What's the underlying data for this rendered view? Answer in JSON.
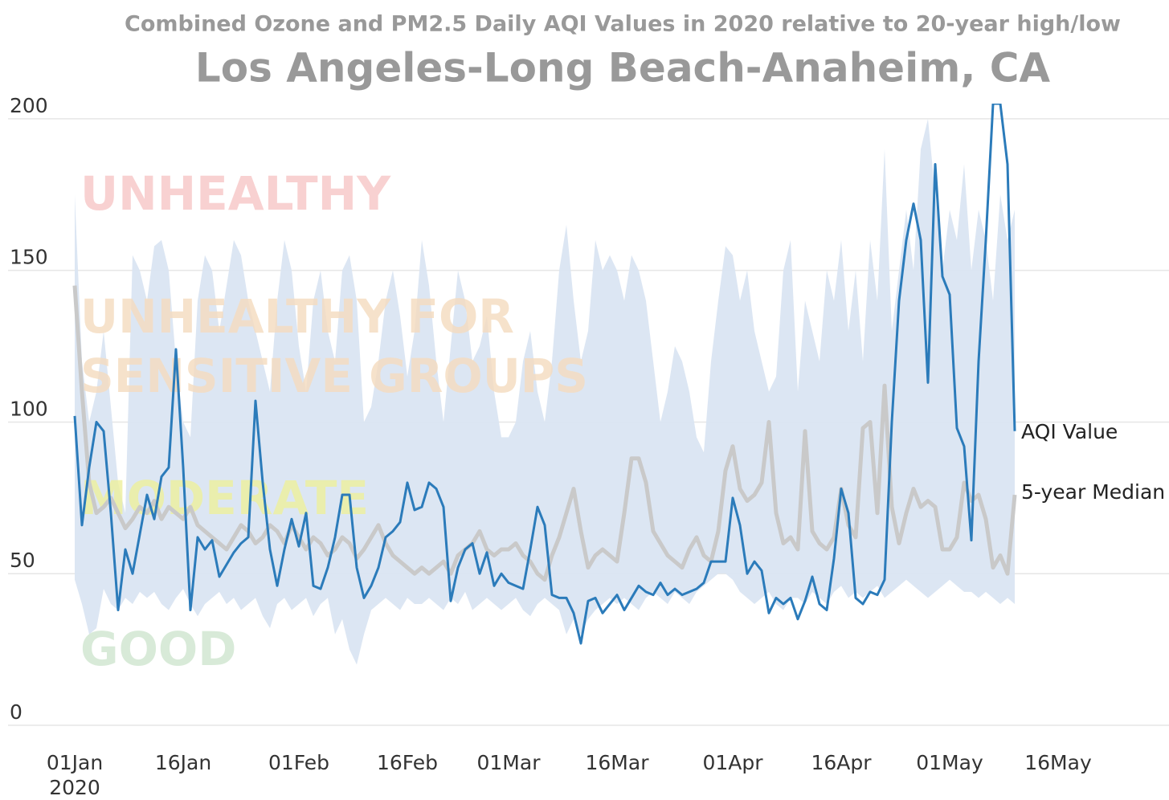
{
  "chart_data": {
    "type": "line",
    "title": "Combined Ozone and PM2.5 Daily AQI Values in 2020 relative to 20-year high/low",
    "subtitle": "Los Angeles-Long Beach-Anaheim, CA",
    "x": [
      "2020-01-01",
      "2020-01-02",
      "2020-01-03",
      "2020-01-04",
      "2020-01-05",
      "2020-01-06",
      "2020-01-07",
      "2020-01-08",
      "2020-01-09",
      "2020-01-10",
      "2020-01-11",
      "2020-01-12",
      "2020-01-13",
      "2020-01-14",
      "2020-01-15",
      "2020-01-16",
      "2020-01-17",
      "2020-01-18",
      "2020-01-19",
      "2020-01-20",
      "2020-01-21",
      "2020-01-22",
      "2020-01-23",
      "2020-01-24",
      "2020-01-25",
      "2020-01-26",
      "2020-01-27",
      "2020-01-28",
      "2020-01-29",
      "2020-01-30",
      "2020-01-31",
      "2020-02-01",
      "2020-02-02",
      "2020-02-03",
      "2020-02-04",
      "2020-02-05",
      "2020-02-06",
      "2020-02-07",
      "2020-02-08",
      "2020-02-09",
      "2020-02-10",
      "2020-02-11",
      "2020-02-12",
      "2020-02-13",
      "2020-02-14",
      "2020-02-15",
      "2020-02-16",
      "2020-02-17",
      "2020-02-18",
      "2020-02-19",
      "2020-02-20",
      "2020-02-21",
      "2020-02-22",
      "2020-02-23",
      "2020-02-24",
      "2020-02-25",
      "2020-02-26",
      "2020-02-27",
      "2020-02-28",
      "2020-02-29",
      "2020-03-01",
      "2020-03-02",
      "2020-03-03",
      "2020-03-04",
      "2020-03-05",
      "2020-03-06",
      "2020-03-07",
      "2020-03-08",
      "2020-03-09",
      "2020-03-10",
      "2020-03-11",
      "2020-03-12",
      "2020-03-13",
      "2020-03-14",
      "2020-03-15",
      "2020-03-16",
      "2020-03-17",
      "2020-03-18",
      "2020-03-19",
      "2020-03-20",
      "2020-03-21",
      "2020-03-22",
      "2020-03-23",
      "2020-03-24",
      "2020-03-25",
      "2020-03-26",
      "2020-03-27",
      "2020-03-28",
      "2020-03-29",
      "2020-03-30",
      "2020-03-31",
      "2020-04-01",
      "2020-04-02",
      "2020-04-03",
      "2020-04-04",
      "2020-04-05",
      "2020-04-06",
      "2020-04-07",
      "2020-04-08",
      "2020-04-09",
      "2020-04-10",
      "2020-04-11",
      "2020-04-12",
      "2020-04-13",
      "2020-04-14",
      "2020-04-15",
      "2020-04-16",
      "2020-04-17",
      "2020-04-18",
      "2020-04-19",
      "2020-04-20",
      "2020-04-21",
      "2020-04-22",
      "2020-04-23",
      "2020-04-24",
      "2020-04-25",
      "2020-04-26",
      "2020-04-27",
      "2020-04-28",
      "2020-04-29",
      "2020-04-30",
      "2020-05-01",
      "2020-05-02",
      "2020-05-03",
      "2020-05-04",
      "2020-05-05",
      "2020-05-06",
      "2020-05-07",
      "2020-05-08",
      "2020-05-09",
      "2020-05-10"
    ],
    "series": [
      {
        "name": "AQI Value",
        "color": "#2b7bba",
        "values": [
          102,
          66,
          85,
          100,
          97,
          70,
          38,
          58,
          50,
          63,
          76,
          68,
          82,
          85,
          124,
          85,
          38,
          62,
          58,
          61,
          49,
          53,
          57,
          60,
          62,
          107,
          80,
          58,
          46,
          58,
          68,
          59,
          70,
          46,
          45,
          52,
          62,
          76,
          76,
          52,
          42,
          46,
          52,
          62,
          64,
          67,
          80,
          71,
          72,
          80,
          78,
          72,
          41,
          52,
          58,
          60,
          50,
          57,
          46,
          50,
          47,
          46,
          45,
          58,
          72,
          66,
          43,
          42,
          42,
          37,
          27,
          41,
          42,
          37,
          40,
          43,
          38,
          42,
          46,
          44,
          43,
          47,
          43,
          45,
          43,
          44,
          45,
          47,
          54,
          54,
          54,
          75,
          66,
          50,
          54,
          51,
          37,
          42,
          40,
          42,
          35,
          41,
          49,
          40,
          38,
          55,
          78,
          70,
          42,
          40,
          44,
          43,
          48,
          100,
          140,
          160,
          172,
          160,
          113,
          185,
          148,
          142,
          98,
          92,
          61,
          120,
          160,
          205,
          205,
          185,
          97
        ]
      },
      {
        "name": "5-year Median",
        "color": "#c9c9c9",
        "values": [
          145,
          110,
          80,
          70,
          72,
          75,
          70,
          65,
          68,
          72,
          70,
          74,
          68,
          72,
          70,
          68,
          72,
          66,
          64,
          62,
          60,
          58,
          62,
          66,
          64,
          60,
          62,
          66,
          64,
          60,
          66,
          62,
          58,
          62,
          60,
          56,
          58,
          62,
          60,
          55,
          58,
          62,
          66,
          60,
          56,
          54,
          52,
          50,
          52,
          50,
          52,
          54,
          50,
          56,
          58,
          60,
          64,
          58,
          56,
          58,
          58,
          60,
          56,
          54,
          50,
          48,
          56,
          62,
          70,
          78,
          64,
          52,
          56,
          58,
          56,
          54,
          70,
          88,
          88,
          80,
          64,
          60,
          56,
          54,
          52,
          58,
          62,
          56,
          54,
          64,
          84,
          92,
          78,
          74,
          76,
          80,
          100,
          70,
          60,
          62,
          58,
          97,
          64,
          60,
          58,
          62,
          78,
          66,
          62,
          98,
          100,
          70,
          112,
          72,
          60,
          70,
          78,
          72,
          74,
          72,
          58,
          58,
          62,
          80,
          74,
          76,
          68,
          52,
          56,
          50,
          76
        ]
      }
    ],
    "band": {
      "color": "#dae5f2",
      "high": [
        175,
        120,
        100,
        110,
        130,
        105,
        80,
        70,
        155,
        150,
        140,
        158,
        160,
        150,
        120,
        100,
        95,
        140,
        155,
        150,
        130,
        145,
        160,
        155,
        140,
        130,
        120,
        110,
        140,
        160,
        150,
        125,
        110,
        140,
        150,
        130,
        120,
        150,
        155,
        140,
        100,
        105,
        120,
        140,
        150,
        135,
        115,
        130,
        160,
        145,
        120,
        100,
        125,
        150,
        140,
        120,
        125,
        135,
        110,
        95,
        95,
        100,
        120,
        130,
        110,
        100,
        120,
        150,
        165,
        140,
        120,
        130,
        160,
        150,
        155,
        150,
        140,
        155,
        150,
        140,
        120,
        100,
        110,
        125,
        120,
        110,
        95,
        90,
        120,
        140,
        158,
        155,
        140,
        150,
        130,
        120,
        110,
        115,
        150,
        160,
        110,
        140,
        130,
        120,
        150,
        140,
        160,
        130,
        150,
        120,
        160,
        140,
        190,
        130,
        150,
        170,
        150,
        190,
        200,
        175,
        150,
        170,
        160,
        185,
        150,
        170,
        160,
        140,
        175,
        160,
        170
      ],
      "low": [
        48,
        40,
        30,
        32,
        45,
        40,
        38,
        42,
        40,
        44,
        42,
        44,
        40,
        38,
        42,
        45,
        40,
        36,
        40,
        42,
        44,
        40,
        42,
        38,
        40,
        42,
        36,
        32,
        40,
        42,
        38,
        40,
        42,
        36,
        40,
        42,
        30,
        35,
        25,
        20,
        30,
        38,
        40,
        42,
        40,
        38,
        42,
        40,
        40,
        42,
        40,
        38,
        42,
        40,
        44,
        38,
        40,
        42,
        40,
        38,
        40,
        42,
        38,
        36,
        40,
        42,
        40,
        38,
        30,
        35,
        30,
        35,
        38,
        40,
        42,
        40,
        42,
        40,
        38,
        42,
        44,
        42,
        40,
        44,
        42,
        40,
        44,
        46,
        48,
        50,
        50,
        48,
        44,
        42,
        40,
        42,
        44,
        40,
        38,
        42,
        42,
        40,
        44,
        42,
        40,
        44,
        46,
        42,
        44,
        42,
        44,
        46,
        42,
        44,
        46,
        48,
        46,
        44,
        42,
        44,
        46,
        48,
        46,
        44,
        44,
        42,
        44,
        42,
        40,
        42,
        40
      ]
    },
    "xlim": [
      "2019-12-30",
      "2020-05-31"
    ],
    "xticks": [
      {
        "value": "2020-01-01",
        "label": "01Jan"
      },
      {
        "value": "2020-01-16",
        "label": "16Jan"
      },
      {
        "value": "2020-02-01",
        "label": "01Feb"
      },
      {
        "value": "2020-02-16",
        "label": "16Feb"
      },
      {
        "value": "2020-03-01",
        "label": "01Mar"
      },
      {
        "value": "2020-03-16",
        "label": "16Mar"
      },
      {
        "value": "2020-04-01",
        "label": "01Apr"
      },
      {
        "value": "2020-04-16",
        "label": "16Apr"
      },
      {
        "value": "2020-05-01",
        "label": "01May"
      },
      {
        "value": "2020-05-16",
        "label": "16May"
      }
    ],
    "x_year_label": "2020",
    "ylim": [
      0,
      205
    ],
    "yticks": [
      0,
      50,
      100,
      150,
      200
    ],
    "grid": true,
    "annotations": [
      {
        "text": "UNHEALTHY",
        "color": "#f7c6c6"
      },
      {
        "text": "UNHEALTHY FOR",
        "color": "#f5dcbf"
      },
      {
        "text": "SENSITIVE GROUPS",
        "color": "#f5dcbf"
      },
      {
        "text": "MODERATE",
        "color": "#eef09c"
      },
      {
        "text": "GOOD",
        "color": "#cfe6cf"
      }
    ]
  }
}
